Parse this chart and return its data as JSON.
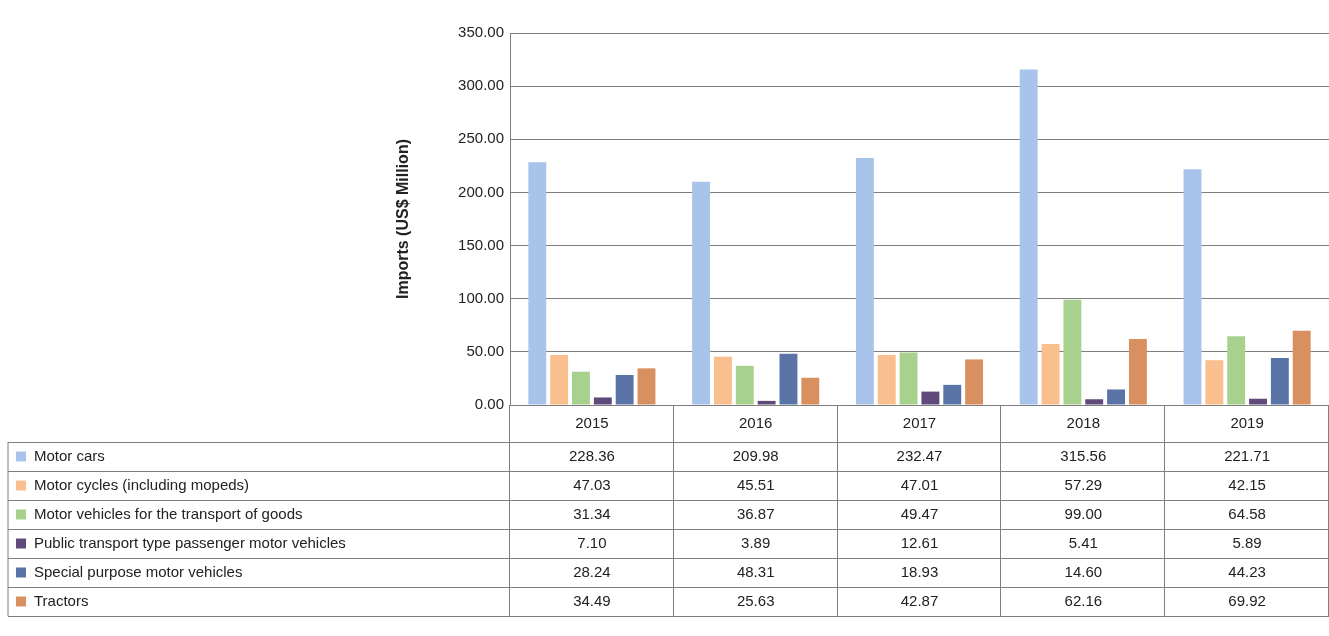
{
  "chart_data": {
    "type": "bar",
    "ylabel": "Imports (US$ Million)",
    "categories": [
      "2015",
      "2016",
      "2017",
      "2018",
      "2019"
    ],
    "ylim": [
      0,
      350
    ],
    "yticks": [
      {
        "value": 0,
        "label": "0.00"
      },
      {
        "value": 50,
        "label": "50.00"
      },
      {
        "value": 100,
        "label": "100.00"
      },
      {
        "value": 150,
        "label": "150.00"
      },
      {
        "value": 200,
        "label": "200.00"
      },
      {
        "value": 250,
        "label": "250.00"
      },
      {
        "value": 300,
        "label": "300.00"
      },
      {
        "value": 350,
        "label": "350.00"
      }
    ],
    "grid": "y",
    "legend": "bottom",
    "series": [
      {
        "name": "Motor cars",
        "color": "#a9c4eb",
        "values": [
          228.36,
          209.98,
          232.47,
          315.56,
          221.71
        ],
        "value_labels": [
          "228.36",
          "209.98",
          "232.47",
          "315.56",
          "221.71"
        ]
      },
      {
        "name": "Motor cycles (including mopeds)",
        "color": "#f9bf8f",
        "values": [
          47.03,
          45.51,
          47.01,
          57.29,
          42.15
        ],
        "value_labels": [
          "47.03",
          "45.51",
          "47.01",
          "57.29",
          "42.15"
        ]
      },
      {
        "name": "Motor vehicles for the transport of goods",
        "color": "#a9d18e",
        "values": [
          31.34,
          36.87,
          49.47,
          99.0,
          64.58
        ],
        "value_labels": [
          "31.34",
          "36.87",
          "49.47",
          "99.00",
          "64.58"
        ]
      },
      {
        "name": "Public transport type passenger motor vehicles",
        "color": "#604a7b",
        "values": [
          7.1,
          3.89,
          12.61,
          5.41,
          5.89
        ],
        "value_labels": [
          "7.10",
          "3.89",
          "12.61",
          "5.41",
          "5.89"
        ]
      },
      {
        "name": "Special purpose motor vehicles",
        "color": "#5a74a8",
        "values": [
          28.24,
          48.31,
          18.93,
          14.6,
          44.23
        ],
        "value_labels": [
          "28.24",
          "48.31",
          "18.93",
          "14.60",
          "44.23"
        ]
      },
      {
        "name": "Tractors",
        "color": "#d99060",
        "values": [
          34.49,
          25.63,
          42.87,
          62.16,
          69.92
        ],
        "value_labels": [
          "34.49",
          "25.63",
          "42.87",
          "62.16",
          "69.92"
        ]
      }
    ]
  }
}
